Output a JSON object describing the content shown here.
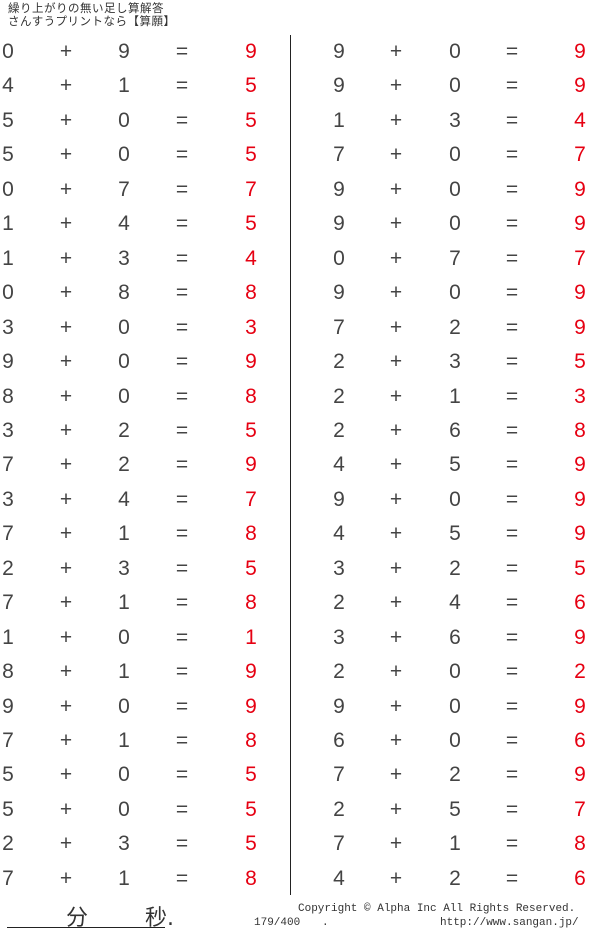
{
  "header": {
    "title": "繰り上がりの無い足し算解答",
    "subtitle": "さんすうプリントなら【算願】"
  },
  "symbols": {
    "plus": "+",
    "equals": "="
  },
  "colors": {
    "answer": "#e60012",
    "text": "#444444"
  },
  "left": [
    [
      0,
      9,
      9
    ],
    [
      4,
      1,
      5
    ],
    [
      5,
      0,
      5
    ],
    [
      5,
      0,
      5
    ],
    [
      0,
      7,
      7
    ],
    [
      1,
      4,
      5
    ],
    [
      1,
      3,
      4
    ],
    [
      0,
      8,
      8
    ],
    [
      3,
      0,
      3
    ],
    [
      9,
      0,
      9
    ],
    [
      8,
      0,
      8
    ],
    [
      3,
      2,
      5
    ],
    [
      7,
      2,
      9
    ],
    [
      3,
      4,
      7
    ],
    [
      7,
      1,
      8
    ],
    [
      2,
      3,
      5
    ],
    [
      7,
      1,
      8
    ],
    [
      1,
      0,
      1
    ],
    [
      8,
      1,
      9
    ],
    [
      9,
      0,
      9
    ],
    [
      7,
      1,
      8
    ],
    [
      5,
      0,
      5
    ],
    [
      5,
      0,
      5
    ],
    [
      2,
      3,
      5
    ],
    [
      7,
      1,
      8
    ]
  ],
  "right": [
    [
      9,
      0,
      9
    ],
    [
      9,
      0,
      9
    ],
    [
      1,
      3,
      4
    ],
    [
      7,
      0,
      7
    ],
    [
      9,
      0,
      9
    ],
    [
      9,
      0,
      9
    ],
    [
      0,
      7,
      7
    ],
    [
      9,
      0,
      9
    ],
    [
      7,
      2,
      9
    ],
    [
      2,
      3,
      5
    ],
    [
      2,
      1,
      3
    ],
    [
      2,
      6,
      8
    ],
    [
      4,
      5,
      9
    ],
    [
      9,
      0,
      9
    ],
    [
      4,
      5,
      9
    ],
    [
      3,
      2,
      5
    ],
    [
      2,
      4,
      6
    ],
    [
      3,
      6,
      9
    ],
    [
      2,
      0,
      2
    ],
    [
      9,
      0,
      9
    ],
    [
      6,
      0,
      6
    ],
    [
      7,
      2,
      9
    ],
    [
      2,
      5,
      7
    ],
    [
      7,
      1,
      8
    ],
    [
      4,
      2,
      6
    ]
  ],
  "footer": {
    "minutes": "分",
    "seconds": "秒.",
    "copyright": "Copyright ©  Alpha Inc All Rights Reserved.",
    "page": "179/400",
    "dot": ".",
    "url": "http://www.sangan.jp/"
  }
}
